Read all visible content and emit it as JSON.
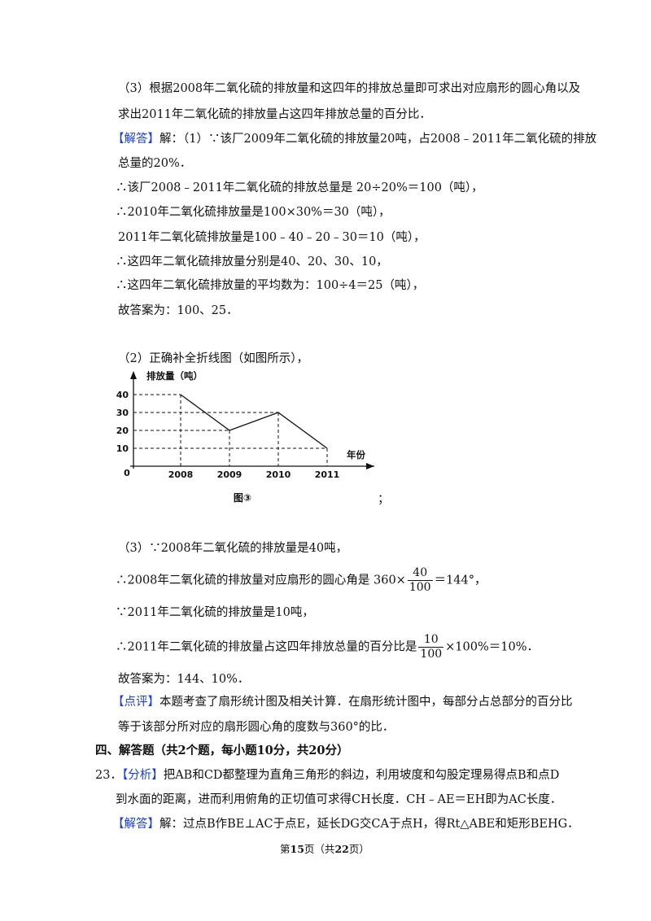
{
  "lines": {
    "l1": "（3）根据2008年二氧化硫的排放量和这四年的排放总量即可求出对应扇形的圆心角以及",
    "l2": "求出2011年二氧化硫的排放量占这四年排放总量的百分比．",
    "l3_tag": "【解答】",
    "l3_text": "解：（1）∵该厂2009年二氧化硫的排放量20吨，占2008﹣2011年二氧化硫的排放",
    "l4": "总量的20%．",
    "l5": "∴该厂2008﹣2011年二氧化硫的排放总量是  20÷20%＝100（吨），",
    "l6": "∴2010年二氧化硫排放量是100×30%＝30（吨），",
    "l7": "2011年二氧化硫排放量是100﹣40﹣20﹣30＝10（吨），",
    "l8": "∴这四年二氧化硫排放量分别是40、20、30、10，",
    "l9": "∴这四年二氧化硫排放量的平均数为：100÷4＝25（吨），",
    "l10": "故答案为：100、25．",
    "l11": "（2）正确补全折线图（如图所示），",
    "semicolon": "；",
    "l12": "（3）∵2008年二氧化硫的排放量是40吨，",
    "l13_pre": "∴2008年二氧化硫的排放量对应扇形的圆心角是  360×",
    "l13_num": "40",
    "l13_den": "100",
    "l13_post": "＝144°，",
    "l14": "∵2011年二氧化硫的排放量是10吨，",
    "l15_pre": "∴2011年二氧化硫的排放量占这四年排放总量的百分比是",
    "l15_num": "10",
    "l15_den": "100",
    "l15_post": "×100%＝10%．",
    "l16": "故答案为：144、10%．",
    "l17_tag": "【点评】",
    "l17_text": "本题考查了扇形统计图及相关计算．在扇形统计图中，每部分占总部分的百分比",
    "l18": "等于该部分所对应的扇形圆心角的度数与360°的比．",
    "section": "四、解答题（共2个题，每小题10分，共20分）",
    "l19_num": "23．",
    "l19_tag": "【分析】",
    "l19_text": "把AB和CD都整理为直角三角形的斜边，利用坡度和勾股定理易得点B和点D",
    "l20": "到水面的距离，进而利用俯角的正切值可求得CH长度．CH﹣AE＝EH即为AC长度．",
    "l21_tag": "【解答】",
    "l21_text": "解：过点B作BE⊥AC于点E，延长DG交CA于点H，得Rt△ABE和矩形BEHG．",
    "footer_pre": "第",
    "footer_page": "15",
    "footer_mid": "页（共",
    "footer_total": "22",
    "footer_post": "页）"
  },
  "chart_data": {
    "type": "line",
    "title": "",
    "ylabel": "排放量（吨）",
    "xlabel": "年份",
    "origin_label": "0",
    "caption": "图③",
    "categories": [
      "2008",
      "2009",
      "2010",
      "2011"
    ],
    "y_ticks": [
      "10",
      "20",
      "30",
      "40"
    ],
    "values": [
      40,
      20,
      30,
      10
    ],
    "ylim": [
      0,
      45
    ],
    "grid": "dashed reference lines to each point"
  }
}
